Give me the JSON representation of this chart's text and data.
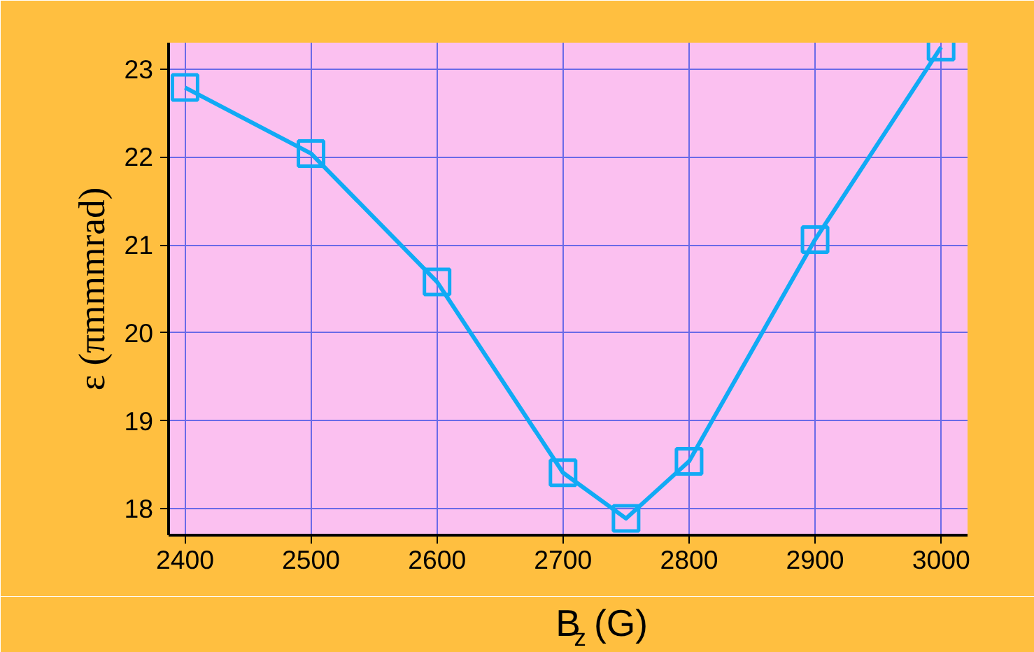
{
  "chart_data": {
    "type": "line",
    "xlabel": "B$_{z}$ (G)",
    "ylabel": "ε (πmmmrad)",
    "x": [
      2400,
      2500,
      2600,
      2700,
      2750,
      2800,
      2900,
      3000
    ],
    "series": [
      {
        "color": "#11aaf5",
        "values": [
          22.79,
          22.04,
          20.58,
          18.41,
          17.89,
          18.54,
          21.06,
          23.25
        ]
      }
    ],
    "xlim": [
      2387,
      3021
    ],
    "ylim": [
      17.7,
      23.3
    ],
    "xticks": [
      2400,
      2500,
      2600,
      2700,
      2800,
      2900,
      3000
    ],
    "yticks": [
      18,
      19,
      20,
      21,
      22,
      23
    ],
    "grid": true,
    "marker": "square",
    "line_style": "solid"
  }
}
